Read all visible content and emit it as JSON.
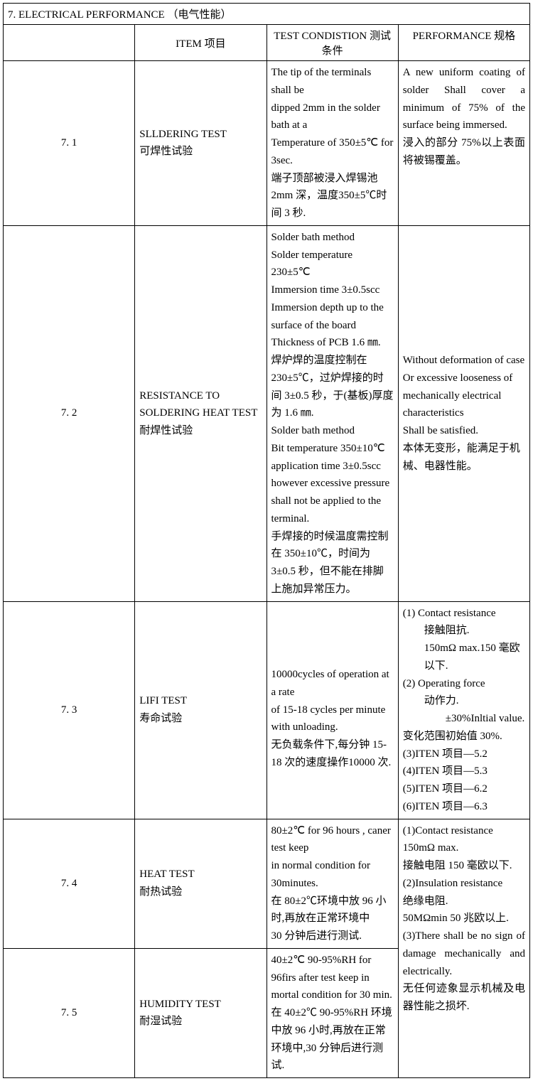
{
  "section": {
    "title": "7. ELECTRICAL   PERFORMANCE  （电气性能）"
  },
  "headers": {
    "item": "ITEM 项目",
    "condition": "TEST CONDISTION 测试条件",
    "performance": "PERFORMANCE 规格"
  },
  "rows": [
    {
      "num": "7. 1",
      "item": "SLLDERING TEST\n可焊性试验",
      "condition": "The tip of the terminals shall be\ndipped 2mm in the solder bath at a\nTemperature of 350±5℃ for 3sec.\n端子顶部被浸入焊锡池 2mm 深，温度350±5℃时间 3 秒.",
      "performance": "A new uniform coating of solder Shall cover a minimum of 75% of the surface being immersed.\n浸入的部分 75%以上表面将被锡覆盖。"
    },
    {
      "num": "7. 2",
      "item": "RESISTANCE TO SOLDERING HEAT TEST\n耐焊性试验",
      "condition": "Solder bath method\nSolder temperature 230±5℃\nImmersion time 3±0.5scc\nImmersion depth up to the surface of the board\nThickness of PCB 1.6 ㎜.\n焊炉焊的温度控制在 230±5℃，过炉焊接的时间 3±0.5 秒，于(基板)厚度为 1.6 ㎜.\nSolder bath method\nBit temperature 350±10℃\napplication time 3±0.5scc\nhowever excessive pressure shall not be applied to the terminal.\n手焊接的时候温度需控制在 350±10℃，时间为\n3±0.5 秒，但不能在排脚上施加异常压力。",
      "performance": "Without deformation of case\nOr excessive looseness of mechanically            electrical characteristics\nShall be satisfied.\n本体无变形，能满足于机械、电器性能。"
    },
    {
      "num": "7. 3",
      "item": "LIFI TEST\n寿命试验",
      "condition": "\n10000cycles of operation at a rate\nof 15-18 cycles per minute with unloading.\n无负载条件下,每分钟 15-18 次的速度操作10000 次.",
      "performance_list": [
        "(1)  Contact resistance",
        "     接触阻抗.",
        "     150mΩ max.150 毫欧以下.",
        "(2)  Operating force",
        "     动作力.",
        "          ±30%Inltial value.",
        "变化范围初始值 30%.",
        "(3)ITEN 项目—5.2",
        "(4)ITEN 项目—5.3",
        "(5)ITEN 项目—6.2",
        "(6)ITEN 项目—6.3"
      ]
    },
    {
      "num": "7. 4",
      "item": "HEAT TEST\n耐热试验",
      "condition": "80±2℃ for 96 hours , caner test keep\nin normal condition for 30minutes.\n在 80±2℃环境中放 96 小时,再放在正常环境中\n30 分钟后进行测试.",
      "performance": "(1)Contact resistance 150mΩ max.\n接触电阻 150 毫欧以下.\n(2)Insulation resistance\n绝缘电阻.\n50MΩmin 50 兆欧以上."
    },
    {
      "num": "7. 5",
      "item": "HUMIDITY TEST\n耐湿试验",
      "condition": "40±2℃ 90-95%RH for 96firs after test keep in mortal condition for 30 min.\n在 40±2℃ 90-95%RH 环境中放 96 小时,再放在正常环境中,30 分钟后进行测试.",
      "performance": "(3)There shall be no sign of damage    mechanically    and electrically.\n无任何迹象显示机械及电器性能之损坏."
    }
  ]
}
